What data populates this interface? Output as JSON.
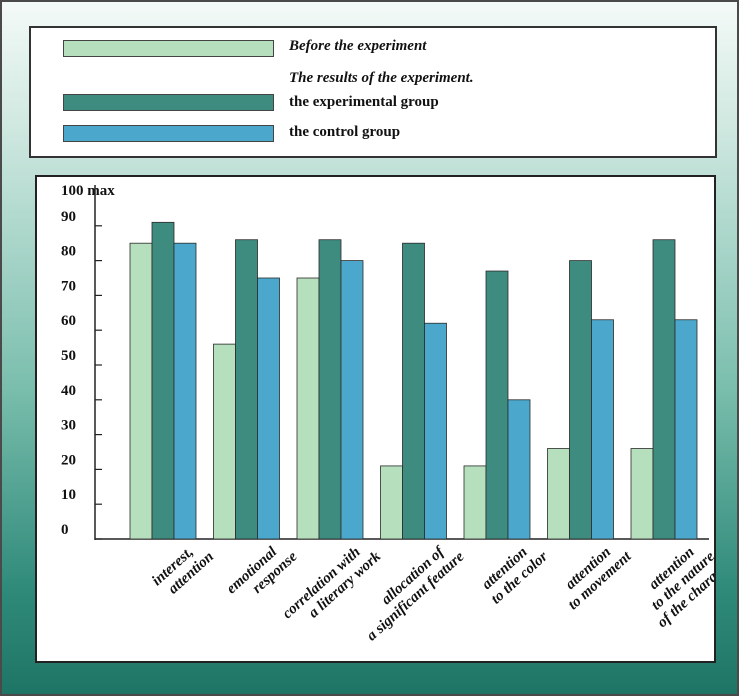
{
  "colors": {
    "before": "#b6dfbd",
    "experimental": "#3e8b7f",
    "control": "#4ba8cc"
  },
  "legend": {
    "before_label": "Before the experiment",
    "results_heading": "The results of the experiment.",
    "experimental_label": "the experimental group",
    "control_label": "the control group"
  },
  "chart_data": {
    "type": "bar",
    "y_top_label": "100 max",
    "ylim": [
      0,
      100
    ],
    "yticks": [
      "0",
      "10",
      "20",
      "30",
      "40",
      "50",
      "60",
      "70",
      "80",
      "90"
    ],
    "categories": [
      [
        "interest,",
        "attention"
      ],
      [
        "emotional",
        "response"
      ],
      [
        "correlation with",
        "a literary work"
      ],
      [
        "allocation of",
        "a significant feature"
      ],
      [
        "attention",
        "to the color"
      ],
      [
        "attention",
        "to movement"
      ],
      [
        "attention",
        "to the nature",
        "of the character"
      ]
    ],
    "series": [
      {
        "name": "Before the experiment",
        "values": [
          85,
          56,
          75,
          21,
          21,
          26,
          26
        ]
      },
      {
        "name": "the experimental group",
        "values": [
          91,
          86,
          86,
          85,
          77,
          80,
          86
        ]
      },
      {
        "name": "the control group",
        "values": [
          85,
          75,
          80,
          62,
          40,
          63,
          63
        ]
      }
    ]
  }
}
